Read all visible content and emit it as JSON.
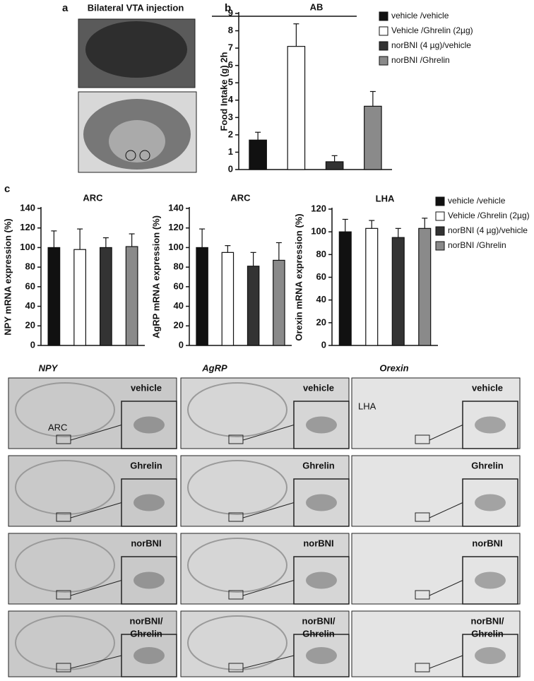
{
  "panel_labels": [
    "a",
    "b",
    "c"
  ],
  "panel_a_title": "Bilateral VTA injection",
  "chart_data": [
    {
      "type": "bar",
      "annotation": "AB",
      "ylabel": "Food Intake (g) 2h",
      "categories": [
        null
      ],
      "ylim": [
        0,
        9
      ],
      "yticks": [
        0,
        1,
        2,
        3,
        4,
        5,
        6,
        7,
        8,
        9
      ],
      "legend": "right",
      "series": [
        {
          "name": "vehicle /vehicle",
          "color": "#111111",
          "values": [
            1.7
          ],
          "errors": [
            0.45
          ]
        },
        {
          "name": "Vehicle /Ghrelin (2µg)",
          "color": "#ffffff",
          "values": [
            7.1
          ],
          "errors": [
            1.3
          ]
        },
        {
          "name": "norBNI (4 µg)/vehicle",
          "color": "#333333",
          "values": [
            0.45
          ],
          "errors": [
            0.35
          ]
        },
        {
          "name": "norBNI /Ghrelin",
          "color": "#8a8a8a",
          "values": [
            3.65
          ],
          "errors": [
            0.85
          ]
        }
      ]
    },
    {
      "type": "bar",
      "title": "ARC",
      "ylabel": "NPY mRNA expression (%)",
      "categories": [
        null
      ],
      "ylim": [
        0,
        140
      ],
      "yticks": [
        0,
        20,
        40,
        60,
        80,
        100,
        120,
        140
      ],
      "series": [
        {
          "name": "vehicle /vehicle",
          "color": "#111111",
          "values": [
            100
          ],
          "errors": [
            17
          ]
        },
        {
          "name": "Vehicle /Ghrelin (2µg)",
          "color": "#ffffff",
          "values": [
            98
          ],
          "errors": [
            21
          ]
        },
        {
          "name": "norBNI (4 µg)/vehicle",
          "color": "#333333",
          "values": [
            100
          ],
          "errors": [
            10
          ]
        },
        {
          "name": "norBNI /Ghrelin",
          "color": "#8a8a8a",
          "values": [
            101
          ],
          "errors": [
            13
          ]
        }
      ]
    },
    {
      "type": "bar",
      "title": "ARC",
      "ylabel": "AgRP mRNA expression (%)",
      "categories": [
        null
      ],
      "ylim": [
        0,
        140
      ],
      "yticks": [
        0,
        20,
        40,
        60,
        80,
        100,
        120,
        140
      ],
      "series": [
        {
          "name": "vehicle /vehicle",
          "color": "#111111",
          "values": [
            100
          ],
          "errors": [
            19
          ]
        },
        {
          "name": "Vehicle /Ghrelin (2µg)",
          "color": "#ffffff",
          "values": [
            95
          ],
          "errors": [
            7
          ]
        },
        {
          "name": "norBNI (4 µg)/vehicle",
          "color": "#333333",
          "values": [
            81
          ],
          "errors": [
            14
          ]
        },
        {
          "name": "norBNI /Ghrelin",
          "color": "#8a8a8a",
          "values": [
            87
          ],
          "errors": [
            18
          ]
        }
      ]
    },
    {
      "type": "bar",
      "title": "LHA",
      "ylabel": "Orexin mRNA expression (%)",
      "categories": [
        null
      ],
      "ylim": [
        0,
        120
      ],
      "yticks": [
        0,
        20,
        40,
        60,
        80,
        100,
        120
      ],
      "legend": "right",
      "series": [
        {
          "name": "vehicle /vehicle",
          "color": "#111111",
          "values": [
            100
          ],
          "errors": [
            11
          ]
        },
        {
          "name": "Vehicle /Ghrelin (2µg)",
          "color": "#ffffff",
          "values": [
            103
          ],
          "errors": [
            7
          ]
        },
        {
          "name": "norBNI (4 µg)/vehicle",
          "color": "#333333",
          "values": [
            95
          ],
          "errors": [
            8
          ]
        },
        {
          "name": "norBNI /Ghrelin",
          "color": "#8a8a8a",
          "values": [
            103
          ],
          "errors": [
            9
          ]
        }
      ]
    }
  ],
  "image_grid": {
    "column_headers": [
      "NPY",
      "AgRP",
      "Orexin"
    ],
    "row_labels": [
      [
        "vehicle"
      ],
      [
        "Ghrelin"
      ],
      [
        "norBNI"
      ],
      [
        "norBNI/",
        "Ghrelin"
      ]
    ],
    "annotations": [
      "ARC",
      "LHA"
    ]
  }
}
